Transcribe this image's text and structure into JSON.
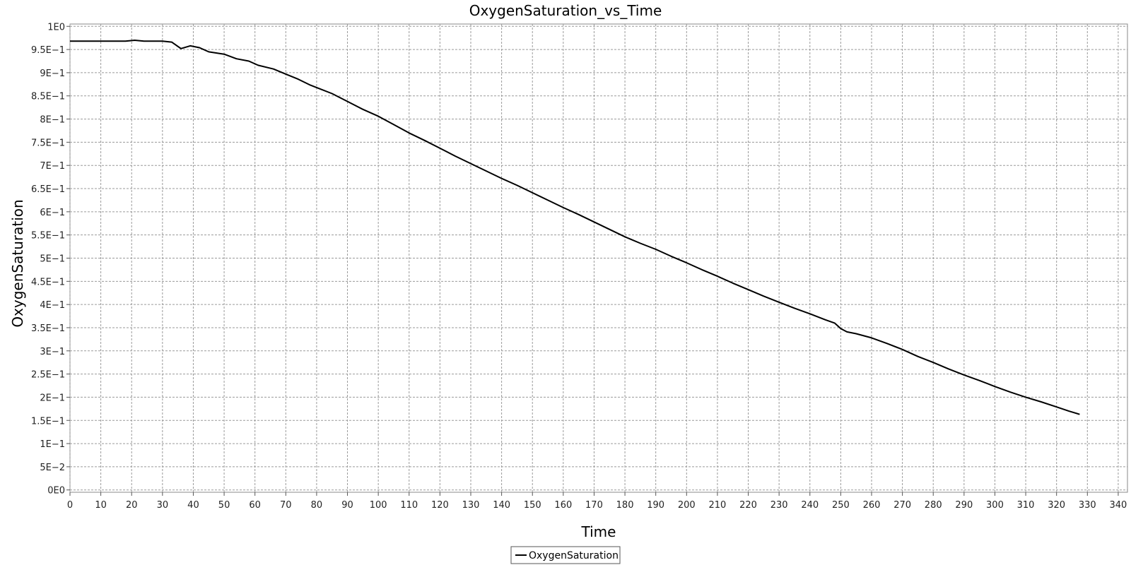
{
  "chart_data": {
    "type": "line",
    "title": "OxygenSaturation_vs_Time",
    "xlabel": "Time",
    "ylabel": "OxygenSaturation",
    "xlim": [
      0,
      343
    ],
    "ylim": [
      -0.005,
      1.005
    ],
    "grid": true,
    "legend_position": "bottom-center",
    "x_ticks": [
      "0",
      "10",
      "20",
      "30",
      "40",
      "50",
      "60",
      "70",
      "80",
      "90",
      "100",
      "110",
      "120",
      "130",
      "140",
      "150",
      "160",
      "170",
      "180",
      "190",
      "200",
      "210",
      "220",
      "230",
      "240",
      "250",
      "260",
      "270",
      "280",
      "290",
      "300",
      "310",
      "320",
      "330",
      "340"
    ],
    "y_ticks": [
      {
        "value": 0,
        "label": "0E0"
      },
      {
        "value": 0.05,
        "label": "5E−2"
      },
      {
        "value": 0.1,
        "label": "1E−1"
      },
      {
        "value": 0.15,
        "label": "1.5E−1"
      },
      {
        "value": 0.2,
        "label": "2E−1"
      },
      {
        "value": 0.25,
        "label": "2.5E−1"
      },
      {
        "value": 0.3,
        "label": "3E−1"
      },
      {
        "value": 0.35,
        "label": "3.5E−1"
      },
      {
        "value": 0.4,
        "label": "4E−1"
      },
      {
        "value": 0.45,
        "label": "4.5E−1"
      },
      {
        "value": 0.5,
        "label": "5E−1"
      },
      {
        "value": 0.55,
        "label": "5.5E−1"
      },
      {
        "value": 0.6,
        "label": "6E−1"
      },
      {
        "value": 0.65,
        "label": "6.5E−1"
      },
      {
        "value": 0.7,
        "label": "7E−1"
      },
      {
        "value": 0.75,
        "label": "7.5E−1"
      },
      {
        "value": 0.8,
        "label": "8E−1"
      },
      {
        "value": 0.85,
        "label": "8.5E−1"
      },
      {
        "value": 0.9,
        "label": "9E−1"
      },
      {
        "value": 0.95,
        "label": "9.5E−1"
      },
      {
        "value": 1.0,
        "label": "1E0"
      }
    ],
    "series": [
      {
        "name": "OxygenSaturation",
        "color": "#000000",
        "points": [
          [
            0,
            0.968
          ],
          [
            10,
            0.968
          ],
          [
            18,
            0.968
          ],
          [
            21,
            0.97
          ],
          [
            24,
            0.968
          ],
          [
            30,
            0.968
          ],
          [
            33,
            0.966
          ],
          [
            36,
            0.952
          ],
          [
            39,
            0.958
          ],
          [
            42,
            0.954
          ],
          [
            45,
            0.945
          ],
          [
            50,
            0.94
          ],
          [
            54,
            0.93
          ],
          [
            58,
            0.925
          ],
          [
            61,
            0.916
          ],
          [
            66,
            0.908
          ],
          [
            70,
            0.897
          ],
          [
            74,
            0.886
          ],
          [
            78,
            0.873
          ],
          [
            85,
            0.855
          ],
          [
            90,
            0.838
          ],
          [
            95,
            0.821
          ],
          [
            100,
            0.806
          ],
          [
            105,
            0.788
          ],
          [
            110,
            0.77
          ],
          [
            115,
            0.754
          ],
          [
            120,
            0.737
          ],
          [
            125,
            0.72
          ],
          [
            130,
            0.704
          ],
          [
            135,
            0.688
          ],
          [
            140,
            0.672
          ],
          [
            145,
            0.657
          ],
          [
            150,
            0.641
          ],
          [
            155,
            0.625
          ],
          [
            160,
            0.609
          ],
          [
            165,
            0.594
          ],
          [
            170,
            0.578
          ],
          [
            175,
            0.562
          ],
          [
            180,
            0.546
          ],
          [
            185,
            0.532
          ],
          [
            190,
            0.519
          ],
          [
            195,
            0.504
          ],
          [
            200,
            0.49
          ],
          [
            205,
            0.475
          ],
          [
            210,
            0.461
          ],
          [
            215,
            0.446
          ],
          [
            220,
            0.432
          ],
          [
            225,
            0.418
          ],
          [
            230,
            0.405
          ],
          [
            235,
            0.392
          ],
          [
            240,
            0.38
          ],
          [
            245,
            0.367
          ],
          [
            248,
            0.36
          ],
          [
            250,
            0.348
          ],
          [
            252,
            0.341
          ],
          [
            255,
            0.337
          ],
          [
            260,
            0.328
          ],
          [
            265,
            0.316
          ],
          [
            270,
            0.303
          ],
          [
            275,
            0.288
          ],
          [
            280,
            0.275
          ],
          [
            285,
            0.261
          ],
          [
            290,
            0.248
          ],
          [
            295,
            0.236
          ],
          [
            300,
            0.223
          ],
          [
            305,
            0.211
          ],
          [
            310,
            0.2
          ],
          [
            315,
            0.19
          ],
          [
            320,
            0.179
          ],
          [
            324,
            0.17
          ],
          [
            327.5,
            0.163
          ]
        ]
      }
    ]
  }
}
